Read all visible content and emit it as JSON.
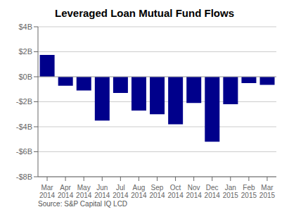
{
  "chart_data": {
    "type": "bar",
    "title": "Leveraged Loan Mutual Fund Flows",
    "categories": [
      "Mar\n2014",
      "Apr\n2014",
      "May\n2014",
      "Jun\n2014",
      "Jul\n2014",
      "Aug\n2014",
      "Sep\n2014",
      "Oct\n2014",
      "Nov\n2014",
      "Dec\n2014",
      "Jan\n2015",
      "Feb\n2015",
      "Mar\n2015"
    ],
    "values": [
      1.75,
      -0.72,
      -1.1,
      -3.5,
      -1.3,
      -2.7,
      -3.0,
      -3.8,
      -2.1,
      -5.2,
      -2.2,
      -0.5,
      -0.65
    ],
    "color": "#00008B",
    "ylim": [
      -8,
      4
    ],
    "yticks": [
      {
        "value": -8,
        "label": "-$8B"
      },
      {
        "value": -6,
        "label": "-$6B"
      },
      {
        "value": -4,
        "label": "-$4B"
      },
      {
        "value": -2,
        "label": "-$2B"
      },
      {
        "value": 0,
        "label": "$0B"
      },
      {
        "value": 2,
        "label": "$2B"
      },
      {
        "value": 4,
        "label": "$4B"
      }
    ],
    "grid": true,
    "annotations": [
      "Source: S&P Capital IQ LCD"
    ]
  }
}
